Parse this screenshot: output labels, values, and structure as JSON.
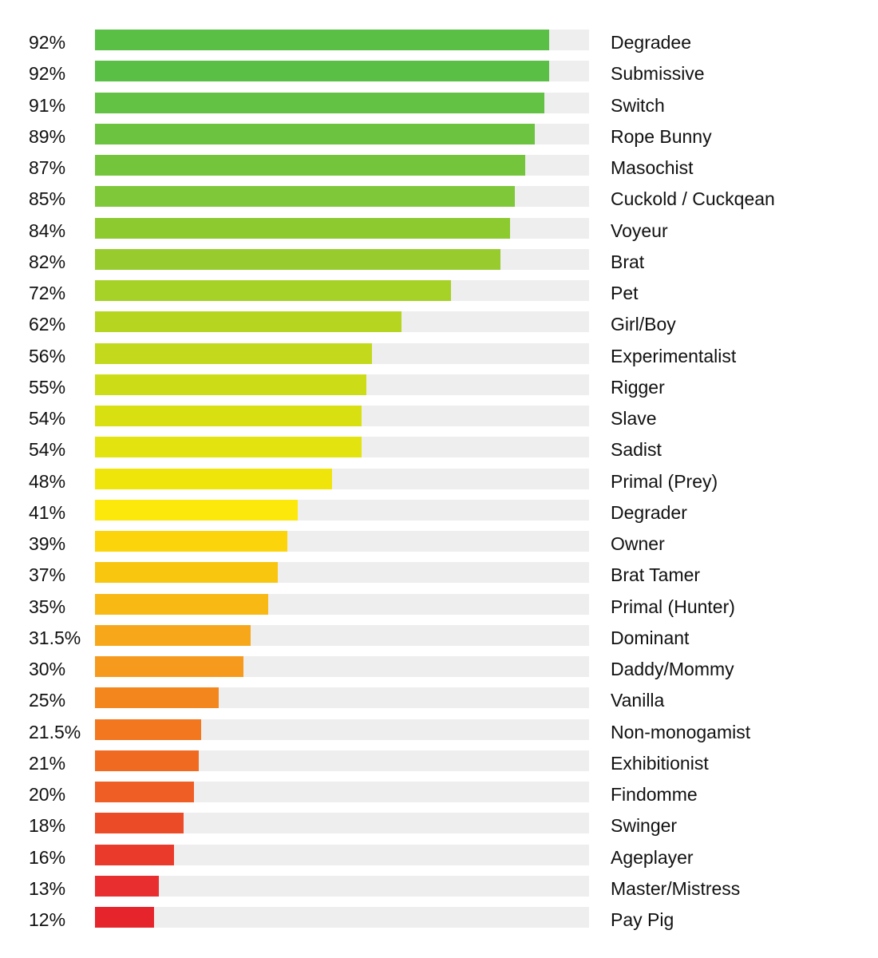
{
  "chart_data": {
    "type": "bar",
    "orientation": "horizontal",
    "title": "",
    "xlabel": "",
    "ylabel": "",
    "xlim": [
      0,
      100
    ],
    "grid": false,
    "legend": "none",
    "categories": [
      "Degradee",
      "Submissive",
      "Switch",
      "Rope Bunny",
      "Masochist",
      "Cuckold / Cuckqean",
      "Voyeur",
      "Brat",
      "Pet",
      "Girl/Boy",
      "Experimentalist",
      "Rigger",
      "Slave",
      "Sadist",
      "Primal (Prey)",
      "Degrader",
      "Owner",
      "Brat Tamer",
      "Primal (Hunter)",
      "Dominant",
      "Daddy/Mommy",
      "Vanilla",
      "Non-monogamist",
      "Exhibitionist",
      "Findomme",
      "Swinger",
      "Ageplayer",
      "Master/Mistress",
      "Pay Pig"
    ],
    "values": [
      92,
      92,
      91,
      89,
      87,
      85,
      84,
      82,
      72,
      62,
      56,
      55,
      54,
      54,
      48,
      41,
      39,
      37,
      35,
      31.5,
      30,
      25,
      21.5,
      21,
      20,
      18,
      16,
      13,
      12
    ],
    "value_labels": [
      "92%",
      "92%",
      "91%",
      "89%",
      "87%",
      "85%",
      "84%",
      "82%",
      "72%",
      "62%",
      "56%",
      "55%",
      "54%",
      "54%",
      "48%",
      "41%",
      "39%",
      "37%",
      "35%",
      "31.5%",
      "30%",
      "25%",
      "21.5%",
      "21%",
      "20%",
      "18%",
      "16%",
      "13%",
      "12%"
    ],
    "colors": [
      "#5abf45",
      "#5abf45",
      "#63c143",
      "#6cc33f",
      "#75c53c",
      "#7ec839",
      "#8cca30",
      "#98cc2e",
      "#a6d127",
      "#b5d521",
      "#c3d91b",
      "#ccdc17",
      "#d8e012",
      "#e2e30f",
      "#f0e50a",
      "#fce80a",
      "#fbd40c",
      "#f9c60f",
      "#f8b915",
      "#f6a81a",
      "#f59a1c",
      "#f3861d",
      "#f2771f",
      "#f06b21",
      "#ee5e25",
      "#ec4b28",
      "#ea3a2b",
      "#e82e2e",
      "#e6242c"
    ],
    "track_color": "#eeeeee"
  }
}
